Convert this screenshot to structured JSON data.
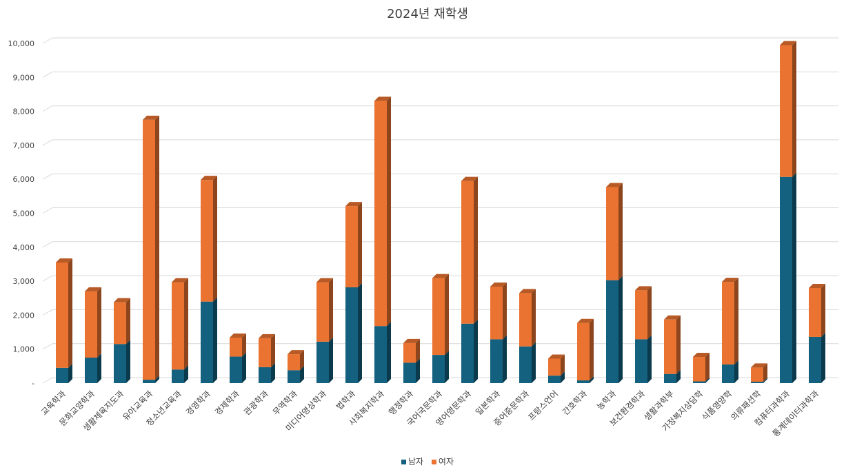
{
  "chart_data": {
    "type": "bar",
    "stacked": true,
    "title": "2024년 재학생",
    "xlabel": "",
    "ylabel": "",
    "ylim": [
      0,
      10000
    ],
    "yticks": [
      "-",
      "1,000",
      "2,000",
      "3,000",
      "4,000",
      "5,000",
      "6,000",
      "7,000",
      "8,000",
      "9,000",
      "10,000"
    ],
    "grid": true,
    "legend_position": "bottom",
    "categories": [
      "교육학과",
      "문화교양학과",
      "생활체육지도과",
      "유아교육과",
      "청소년교육과",
      "경영학과",
      "경제학과",
      "관광학과",
      "무역학과",
      "미디어영상학과",
      "법학과",
      "사회복지학과",
      "행정학과",
      "국어국문학과",
      "영어영문학과",
      "일본학과",
      "중어중문학과",
      "프랑스언어",
      "간호학과",
      "농학과",
      "보건환경학과",
      "생활과학부",
      "가정복지상담학",
      "식품영양학",
      "의류패션학",
      "컴퓨터과학과",
      "통계데이터과학과"
    ],
    "series": [
      {
        "name": "남자",
        "color": "#13607f",
        "values": [
          450,
          750,
          1150,
          100,
          400,
          2400,
          780,
          470,
          380,
          1220,
          2820,
          1680,
          600,
          830,
          1750,
          1290,
          1080,
          220,
          80,
          3030,
          1290,
          270,
          50,
          550,
          40,
          6070,
          1360
        ]
      },
      {
        "name": "여자",
        "color": "#ea7331",
        "values": [
          3100,
          1950,
          1230,
          7650,
          2570,
          3580,
          560,
          850,
          470,
          1750,
          2390,
          6630,
          580,
          2260,
          4200,
          1550,
          1570,
          500,
          1690,
          2740,
          1440,
          1600,
          720,
          2430,
          420,
          3880,
          1440
        ]
      }
    ],
    "colors": {
      "male": "#13607f",
      "female": "#ea7331"
    }
  },
  "legend": {
    "male_label": "남자",
    "female_label": "여자"
  }
}
